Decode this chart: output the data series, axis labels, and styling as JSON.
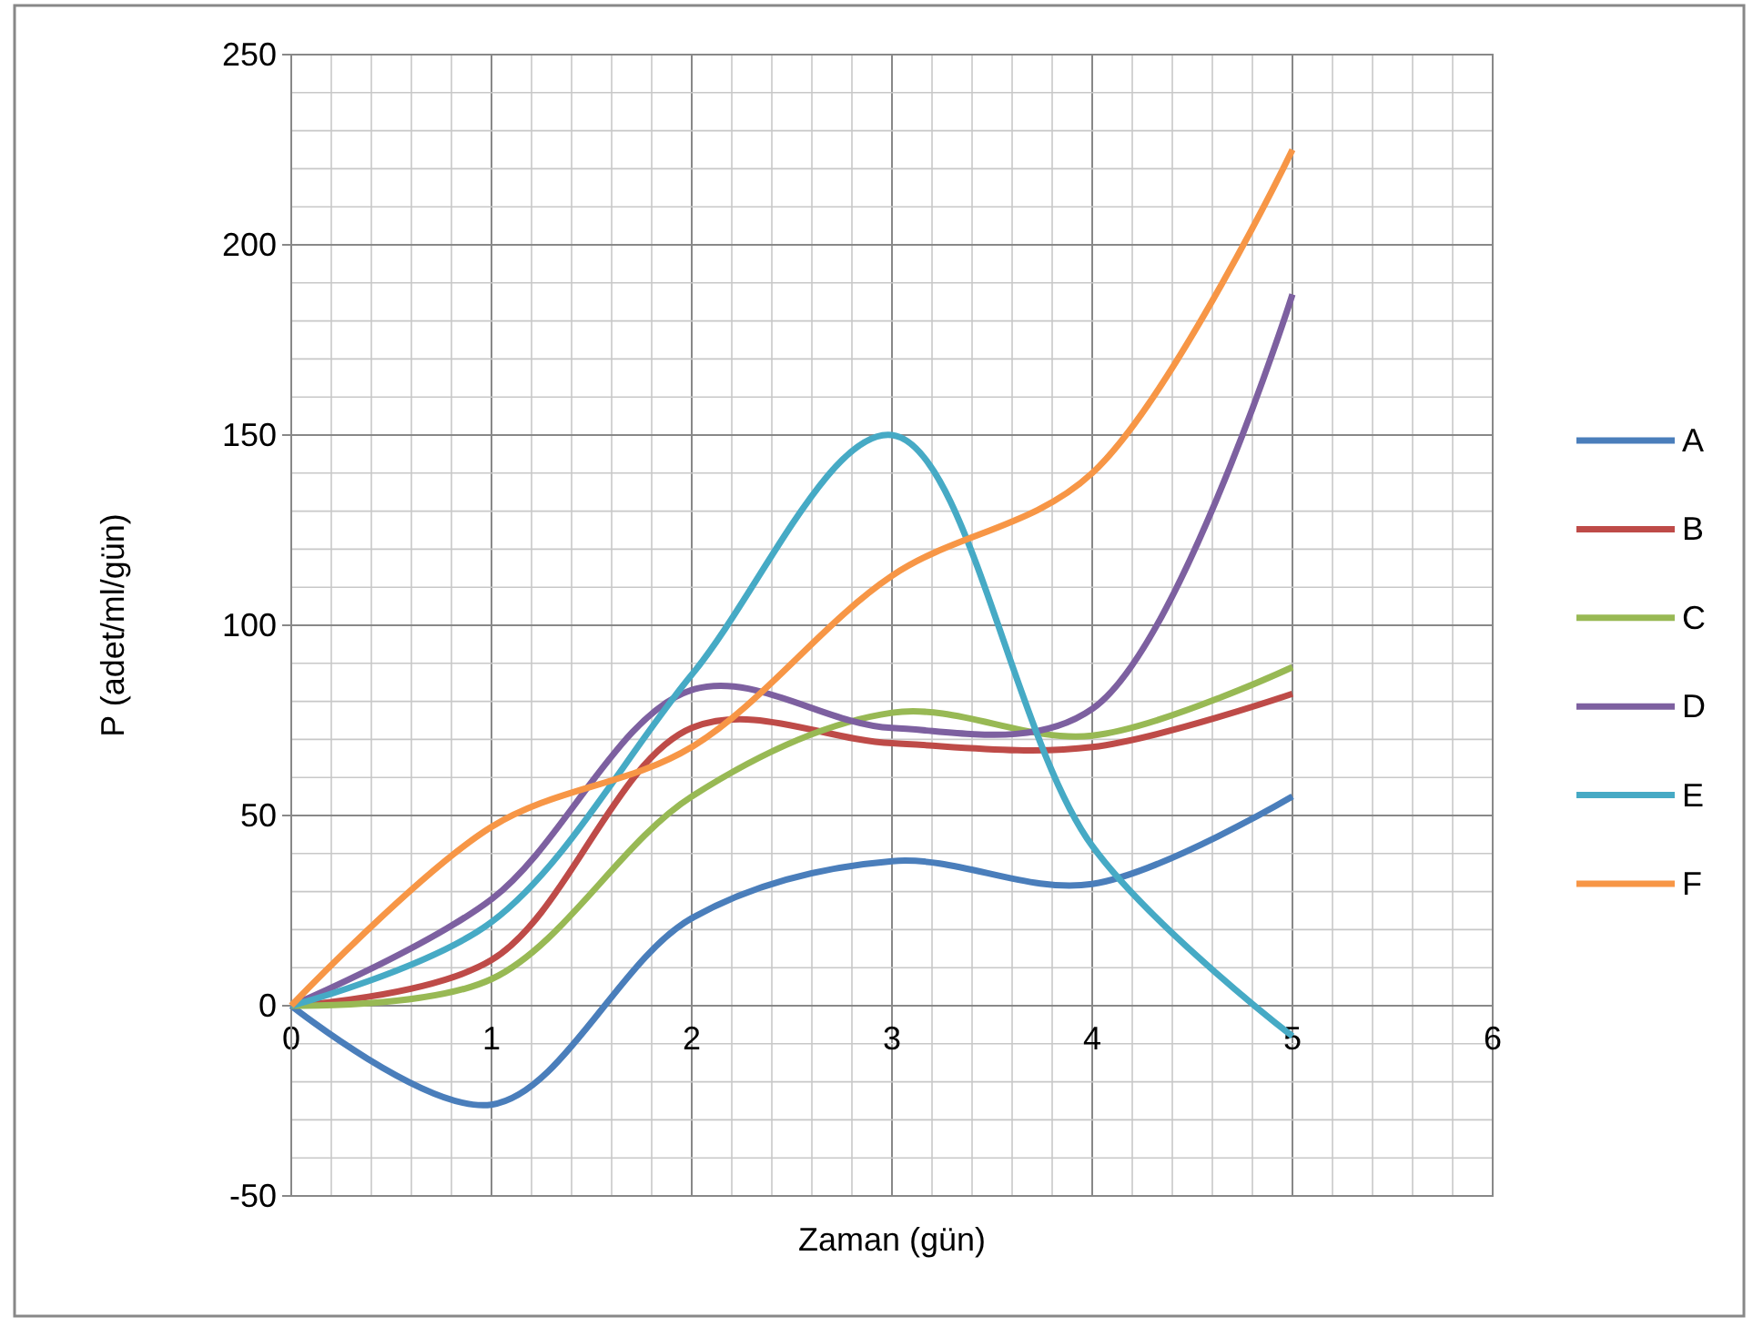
{
  "chart_data": {
    "type": "line",
    "xlabel": "Zaman (gün)",
    "ylabel": "P (adet/ml/gün)",
    "x": [
      0,
      1,
      2,
      3,
      4,
      5
    ],
    "series": [
      {
        "name": "A",
        "color": "#4a7ebb",
        "values": [
          0,
          -26,
          23,
          38,
          32,
          55
        ]
      },
      {
        "name": "B",
        "color": "#be4b48",
        "values": [
          0,
          12,
          73,
          69,
          68,
          82
        ]
      },
      {
        "name": "C",
        "color": "#98b954",
        "values": [
          0,
          7,
          55,
          77,
          71,
          89
        ]
      },
      {
        "name": "D",
        "color": "#7d60a0",
        "values": [
          0,
          28,
          83,
          73,
          78,
          187
        ]
      },
      {
        "name": "E",
        "color": "#46aac5",
        "values": [
          0,
          22,
          87,
          150,
          42,
          -8
        ]
      },
      {
        "name": "F",
        "color": "#f79646",
        "values": [
          0,
          47,
          68,
          113,
          140,
          225
        ]
      }
    ],
    "xlim": [
      0,
      6
    ],
    "xticks": [
      0,
      1,
      2,
      3,
      4,
      5,
      6
    ],
    "ylim": [
      -50,
      250
    ],
    "yticks": [
      -50,
      0,
      50,
      100,
      150,
      200,
      250
    ],
    "grid": true,
    "legend": "right",
    "marker": "none",
    "line_style": "solid"
  }
}
